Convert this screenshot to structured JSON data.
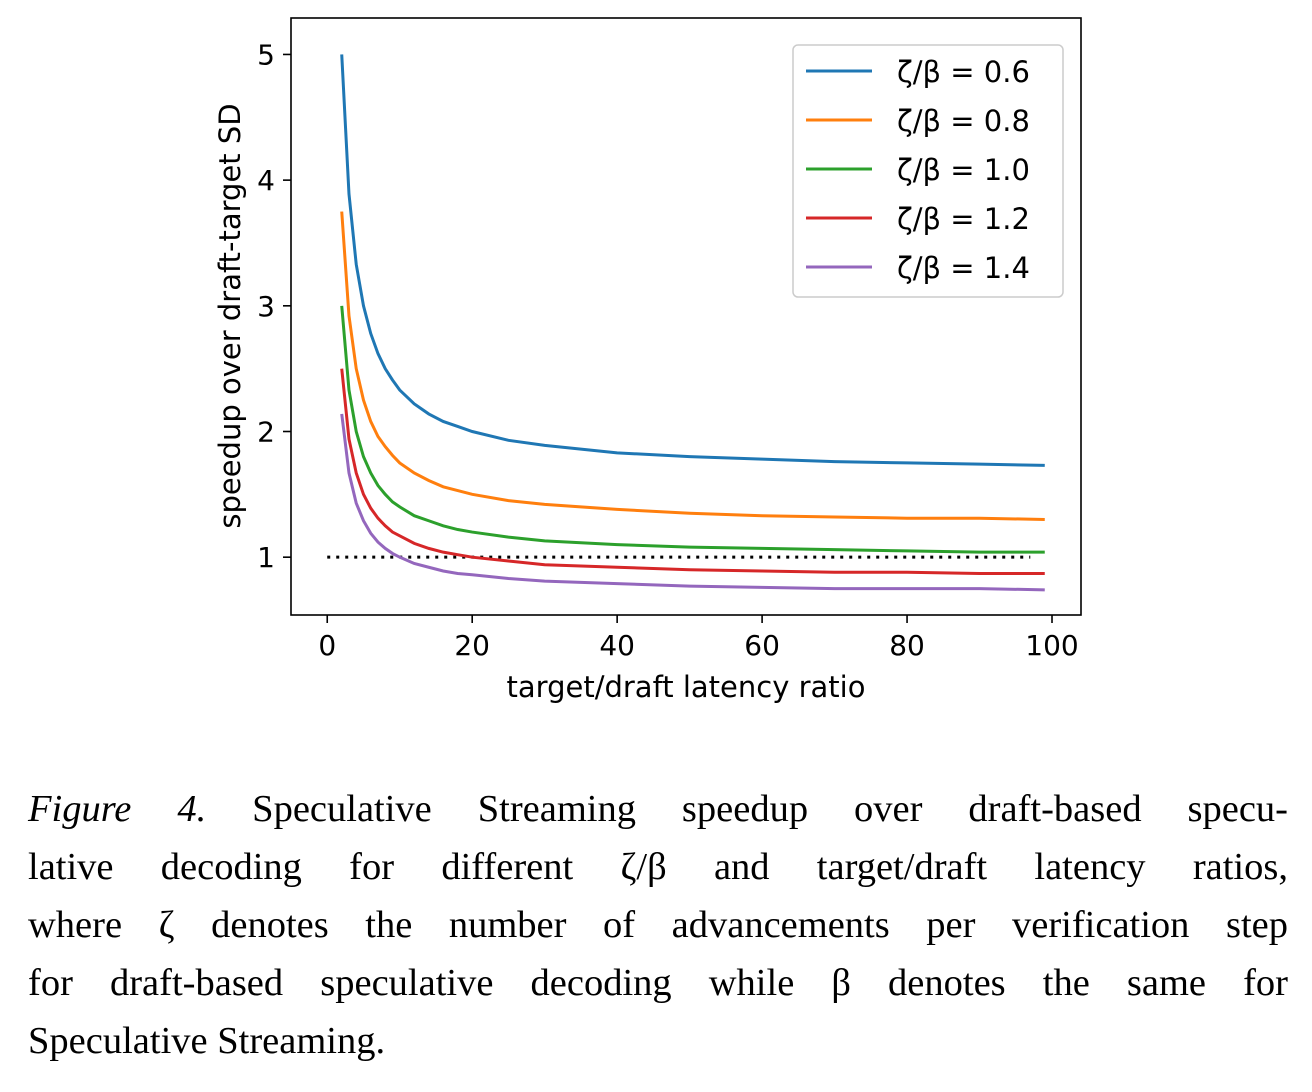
{
  "chart_data": {
    "type": "line",
    "title": "",
    "xlabel": "target/draft latency ratio",
    "ylabel": "speedup over draft-target SD",
    "xlim": [
      -5,
      104
    ],
    "ylim": [
      0.54,
      5.29
    ],
    "xticks": [
      0,
      20,
      40,
      60,
      80,
      100
    ],
    "yticks": [
      1,
      2,
      3,
      4,
      5
    ],
    "grid": false,
    "legend": "top-right",
    "x": [
      2,
      3,
      4,
      5,
      6,
      7,
      8,
      9,
      10,
      12,
      14,
      16,
      18,
      20,
      25,
      30,
      40,
      50,
      60,
      70,
      80,
      90,
      99
    ],
    "series": [
      {
        "name": "ζ/β = 0.6",
        "color": "#1f77b4",
        "values": [
          5.0,
          3.89,
          3.33,
          3.0,
          2.78,
          2.62,
          2.5,
          2.41,
          2.33,
          2.22,
          2.14,
          2.08,
          2.04,
          2.0,
          1.93,
          1.89,
          1.83,
          1.8,
          1.78,
          1.76,
          1.75,
          1.74,
          1.73
        ]
      },
      {
        "name": "ζ/β = 0.8",
        "color": "#ff7f0e",
        "values": [
          3.75,
          2.92,
          2.5,
          2.25,
          2.08,
          1.96,
          1.88,
          1.81,
          1.75,
          1.67,
          1.61,
          1.56,
          1.53,
          1.5,
          1.45,
          1.42,
          1.38,
          1.35,
          1.33,
          1.32,
          1.31,
          1.31,
          1.3
        ]
      },
      {
        "name": "ζ/β = 1.0",
        "color": "#2ca02c",
        "values": [
          3.0,
          2.33,
          2.0,
          1.8,
          1.67,
          1.57,
          1.5,
          1.44,
          1.4,
          1.33,
          1.29,
          1.25,
          1.22,
          1.2,
          1.16,
          1.13,
          1.1,
          1.08,
          1.07,
          1.06,
          1.05,
          1.04,
          1.04
        ]
      },
      {
        "name": "ζ/β = 1.2",
        "color": "#d62728",
        "values": [
          2.5,
          1.94,
          1.67,
          1.5,
          1.39,
          1.31,
          1.25,
          1.2,
          1.17,
          1.11,
          1.07,
          1.04,
          1.02,
          1.0,
          0.97,
          0.94,
          0.92,
          0.9,
          0.89,
          0.88,
          0.88,
          0.87,
          0.87
        ]
      },
      {
        "name": "ζ/β = 1.4",
        "color": "#9467bd",
        "values": [
          2.14,
          1.67,
          1.43,
          1.29,
          1.19,
          1.12,
          1.07,
          1.03,
          1.0,
          0.95,
          0.92,
          0.89,
          0.87,
          0.86,
          0.83,
          0.81,
          0.79,
          0.77,
          0.76,
          0.75,
          0.75,
          0.75,
          0.74
        ]
      }
    ],
    "reference_line": {
      "y": 1,
      "x": [
        0,
        97
      ],
      "style": "dotted",
      "color": "#000000"
    }
  },
  "caption": {
    "label": "Figure 4.",
    "line1": " Speculative Streaming speedup over draft-based specu-",
    "line2": "lative decoding for different ζ/β and target/draft latency ratios,",
    "line3": "where ζ denotes the number of advancements per verification step",
    "line4": "for draft-based speculative decoding while β denotes the same for",
    "line5": "Speculative Streaming."
  }
}
